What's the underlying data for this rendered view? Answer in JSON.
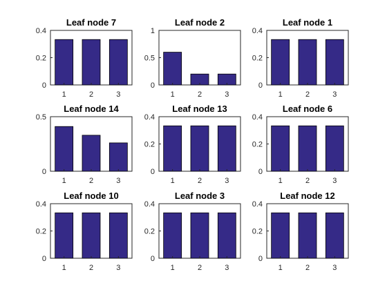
{
  "chart_data": [
    {
      "type": "bar",
      "title": "Leaf node 7",
      "categories": [
        "1",
        "2",
        "3"
      ],
      "values": [
        0.333,
        0.333,
        0.333
      ],
      "ylim": [
        0,
        0.4
      ],
      "yticks": [
        "0",
        "0.2",
        "0.4"
      ],
      "ytick_values": [
        0,
        0.2,
        0.4
      ],
      "grid": false
    },
    {
      "type": "bar",
      "title": "Leaf node 2",
      "categories": [
        "1",
        "2",
        "3"
      ],
      "values": [
        0.6,
        0.2,
        0.2
      ],
      "ylim": [
        0,
        1
      ],
      "yticks": [
        "0",
        "0.5",
        "1"
      ],
      "ytick_values": [
        0,
        0.5,
        1
      ],
      "grid": false
    },
    {
      "type": "bar",
      "title": "Leaf node 1",
      "categories": [
        "1",
        "2",
        "3"
      ],
      "values": [
        0.333,
        0.333,
        0.333
      ],
      "ylim": [
        0,
        0.4
      ],
      "yticks": [
        "0",
        "0.2",
        "0.4"
      ],
      "ytick_values": [
        0,
        0.2,
        0.4
      ],
      "grid": false
    },
    {
      "type": "bar",
      "title": "Leaf node 14",
      "categories": [
        "1",
        "2",
        "3"
      ],
      "values": [
        0.41,
        0.33,
        0.26
      ],
      "ylim": [
        0,
        0.5
      ],
      "yticks": [
        "0",
        "0.5"
      ],
      "ytick_values": [
        0,
        0.5
      ],
      "grid": false
    },
    {
      "type": "bar",
      "title": "Leaf node 13",
      "categories": [
        "1",
        "2",
        "3"
      ],
      "values": [
        0.333,
        0.333,
        0.333
      ],
      "ylim": [
        0,
        0.4
      ],
      "yticks": [
        "0",
        "0.2",
        "0.4"
      ],
      "ytick_values": [
        0,
        0.2,
        0.4
      ],
      "grid": false
    },
    {
      "type": "bar",
      "title": "Leaf node 6",
      "categories": [
        "1",
        "2",
        "3"
      ],
      "values": [
        0.333,
        0.333,
        0.333
      ],
      "ylim": [
        0,
        0.4
      ],
      "yticks": [
        "0",
        "0.2",
        "0.4"
      ],
      "ytick_values": [
        0,
        0.2,
        0.4
      ],
      "grid": false
    },
    {
      "type": "bar",
      "title": "Leaf node 10",
      "categories": [
        "1",
        "2",
        "3"
      ],
      "values": [
        0.333,
        0.333,
        0.333
      ],
      "ylim": [
        0,
        0.4
      ],
      "yticks": [
        "0",
        "0.2",
        "0.4"
      ],
      "ytick_values": [
        0,
        0.2,
        0.4
      ],
      "grid": false
    },
    {
      "type": "bar",
      "title": "Leaf node 3",
      "categories": [
        "1",
        "2",
        "3"
      ],
      "values": [
        0.333,
        0.333,
        0.333
      ],
      "ylim": [
        0,
        0.4
      ],
      "yticks": [
        "0",
        "0.2",
        "0.4"
      ],
      "ytick_values": [
        0,
        0.2,
        0.4
      ],
      "grid": false
    },
    {
      "type": "bar",
      "title": "Leaf node 12",
      "categories": [
        "1",
        "2",
        "3"
      ],
      "values": [
        0.333,
        0.333,
        0.333
      ],
      "ylim": [
        0,
        0.4
      ],
      "yticks": [
        "0",
        "0.2",
        "0.4"
      ],
      "ytick_values": [
        0,
        0.2,
        0.4
      ],
      "grid": false
    }
  ],
  "colors": {
    "bar_fill": "#352a87",
    "bar_edge": "#000000",
    "axis": "#262626",
    "background": "#ffffff"
  }
}
